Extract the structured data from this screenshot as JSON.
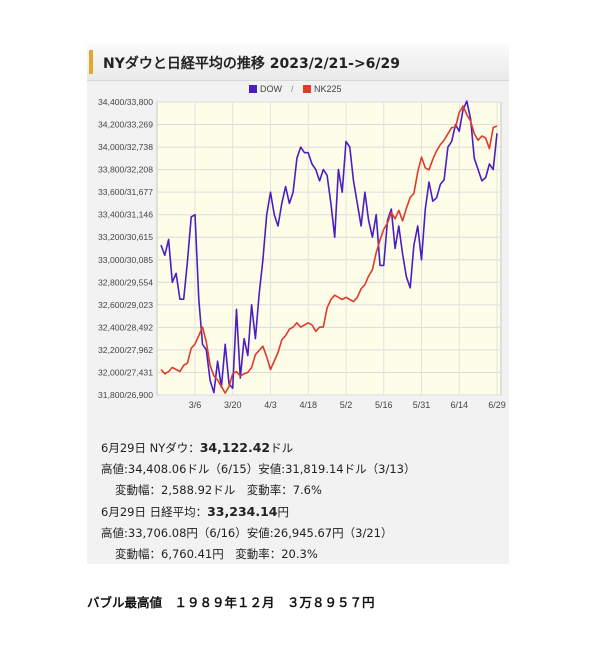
{
  "chart_data": {
    "type": "line",
    "title": "NYダウと日経平均の推移 2023/2/21->6/29",
    "legend_position": "top-center",
    "legend_separator": "/",
    "grid": true,
    "x_tick_labels": [
      "3/6",
      "3/20",
      "4/3",
      "4/18",
      "5/2",
      "5/16",
      "5/31",
      "6/14",
      "6/29"
    ],
    "x_tick_index": [
      9,
      19,
      29,
      39,
      49,
      59,
      69,
      79,
      89
    ],
    "n_points": 90,
    "y_tick_labels": [
      "31,800/26,900",
      "32,000/27,431",
      "32,200/27,962",
      "32,400/28,492",
      "32,600/29,023",
      "32,800/29,554",
      "33,000/30,085",
      "33,200/30,615",
      "33,400/31,146",
      "33,600/31,677",
      "33,800/32,208",
      "34,000/32,738",
      "34,200/33,269",
      "34,400/33,800"
    ],
    "series": [
      {
        "name": "DOW",
        "color": "#4a1ec4",
        "ylim": [
          31800,
          34400
        ],
        "values": [
          33130,
          33040,
          33180,
          32800,
          32880,
          32650,
          32650,
          32980,
          33380,
          33400,
          32650,
          32250,
          32200,
          31930,
          31820,
          32100,
          31870,
          32250,
          31900,
          31860,
          32560,
          31950,
          32300,
          32150,
          32600,
          32300,
          32700,
          33000,
          33400,
          33600,
          33400,
          33300,
          33500,
          33650,
          33500,
          33600,
          33900,
          34000,
          33950,
          33950,
          33850,
          33800,
          33700,
          33800,
          33750,
          33500,
          33200,
          33800,
          33600,
          34050,
          34000,
          33700,
          33500,
          33300,
          33600,
          33350,
          33200,
          33400,
          32950,
          32950,
          33350,
          33450,
          33100,
          33300,
          33050,
          32850,
          32750,
          33130,
          33300,
          33000,
          33450,
          33690,
          33520,
          33550,
          33670,
          33710,
          34000,
          34050,
          34200,
          34140,
          34330,
          34408,
          34250,
          33900,
          33800,
          33700,
          33730,
          33850,
          33800,
          34122
        ]
      },
      {
        "name": "NK225",
        "color": "#e03a2a",
        "ylim": [
          26900,
          33800
        ],
        "values": [
          27500,
          27400,
          27450,
          27550,
          27500,
          27450,
          27600,
          27650,
          28000,
          28100,
          28300,
          28500,
          28150,
          27600,
          27350,
          27250,
          27100,
          26945,
          27100,
          27400,
          27450,
          27350,
          27400,
          27430,
          27550,
          27850,
          27950,
          28050,
          27800,
          27500,
          27700,
          27900,
          28200,
          28300,
          28450,
          28500,
          28600,
          28500,
          28550,
          28600,
          28550,
          28400,
          28500,
          28500,
          28950,
          29150,
          29250,
          29200,
          29150,
          29200,
          29150,
          29100,
          29200,
          29400,
          29500,
          29700,
          29850,
          30250,
          30550,
          30800,
          30950,
          31200,
          31050,
          31250,
          31000,
          31300,
          31550,
          31650,
          32150,
          32500,
          32250,
          32200,
          32450,
          32650,
          32800,
          32900,
          33050,
          33200,
          33200,
          33550,
          33706,
          33500,
          33350,
          33050,
          32900,
          33000,
          32950,
          32700,
          33200,
          33234
        ]
      }
    ]
  },
  "stats": {
    "dow_line": {
      "date": "6月29日 NYダウ：",
      "value": "34,122.42",
      "unit": "ドル"
    },
    "dow_range": "高値:34,408.06ドル（6/15）安値:31,819.14ドル（3/13）",
    "dow_change": "変動幅：2,588.92ドル　変動率：7.6%",
    "nk_line": {
      "date": "6月29日 日経平均：",
      "value": "33,234.14",
      "unit": "円"
    },
    "nk_range": "高値:33,706.08円（6/16）安値:26,945.67円（3/21）",
    "nk_change": "変動幅：6,760.41円　変動率：20.3%"
  },
  "footer": "バブル最高値　１９８９年１２月　３万８９５７円"
}
